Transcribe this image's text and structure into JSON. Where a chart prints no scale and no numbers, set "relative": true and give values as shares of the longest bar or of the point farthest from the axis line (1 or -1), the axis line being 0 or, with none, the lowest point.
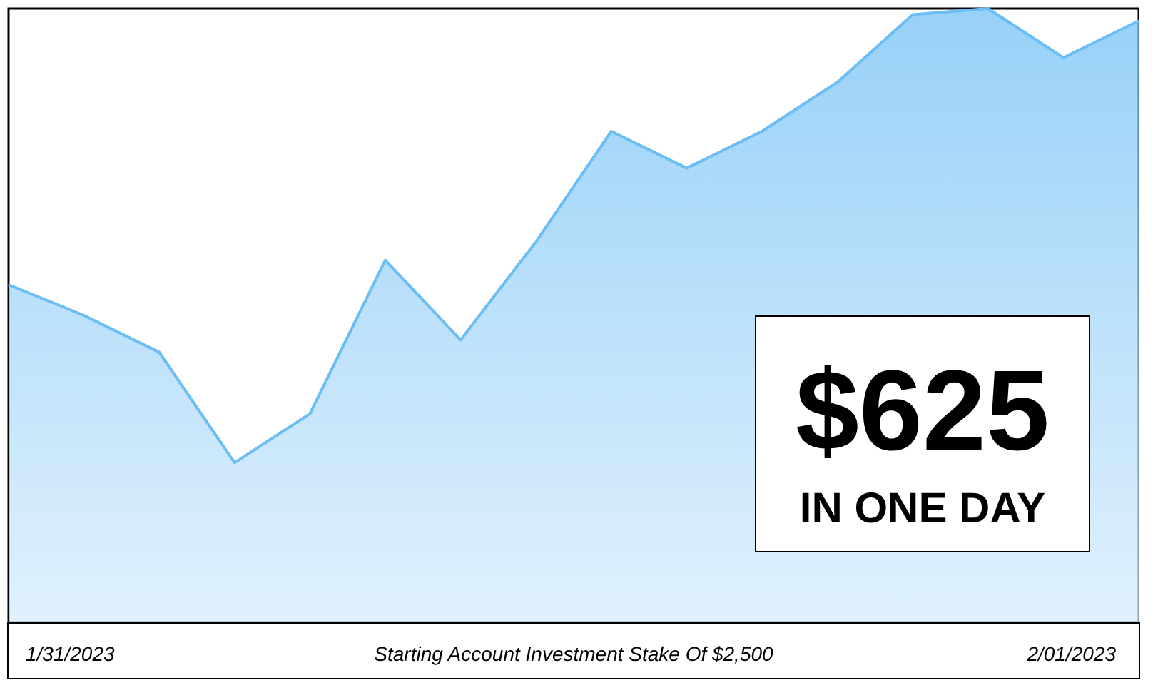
{
  "chart_data": {
    "type": "area",
    "relative": true,
    "color": "#6bbdf5",
    "categories": [
      null,
      null,
      null,
      null,
      null,
      null,
      null,
      null,
      null,
      null,
      null,
      null,
      null,
      null,
      null,
      null
    ],
    "values": [
      0.55,
      0.5,
      0.44,
      0.26,
      0.34,
      0.59,
      0.46,
      0.62,
      0.8,
      0.74,
      0.8,
      0.88,
      0.99,
      1,
      0.92,
      0.98
    ],
    "annotations": [
      "$625",
      "IN ONE DAY",
      "1/31/2023",
      "Starting Account Investment Stake Of $2,500",
      "2/01/2023"
    ]
  }
}
